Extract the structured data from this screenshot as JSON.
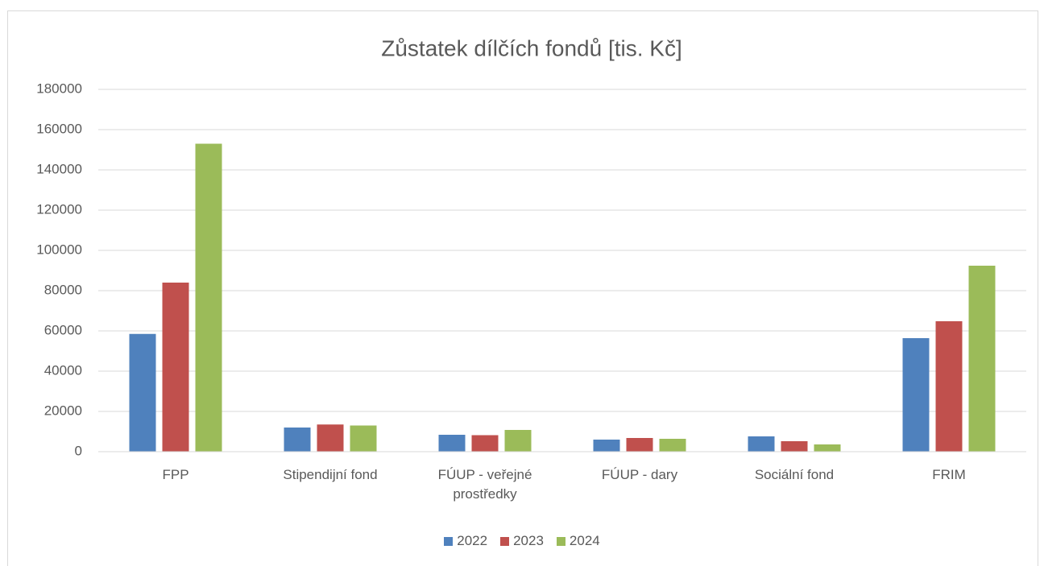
{
  "chart_data": {
    "type": "bar",
    "title": "Zůstatek dílčích fondů [tis. Kč]",
    "categories": [
      "FPP",
      "Stipendijní fond",
      "FÚUP - veřejné prostředky",
      "FÚUP - dary",
      "Sociální fond",
      "FRIM"
    ],
    "series": [
      {
        "name": "2022",
        "color": "#4f81bd",
        "values": [
          58500,
          12000,
          8400,
          6000,
          7600,
          56400
        ]
      },
      {
        "name": "2023",
        "color": "#c0504d",
        "values": [
          84000,
          13500,
          8200,
          6800,
          5200,
          64800
        ]
      },
      {
        "name": "2024",
        "color": "#9bbb59",
        "values": [
          153000,
          13000,
          10800,
          6400,
          3600,
          92400
        ]
      }
    ],
    "ylim": [
      0,
      180000
    ],
    "yticks": [
      0,
      20000,
      40000,
      60000,
      80000,
      100000,
      120000,
      140000,
      160000,
      180000
    ],
    "grid": true,
    "legend": "bottom"
  }
}
